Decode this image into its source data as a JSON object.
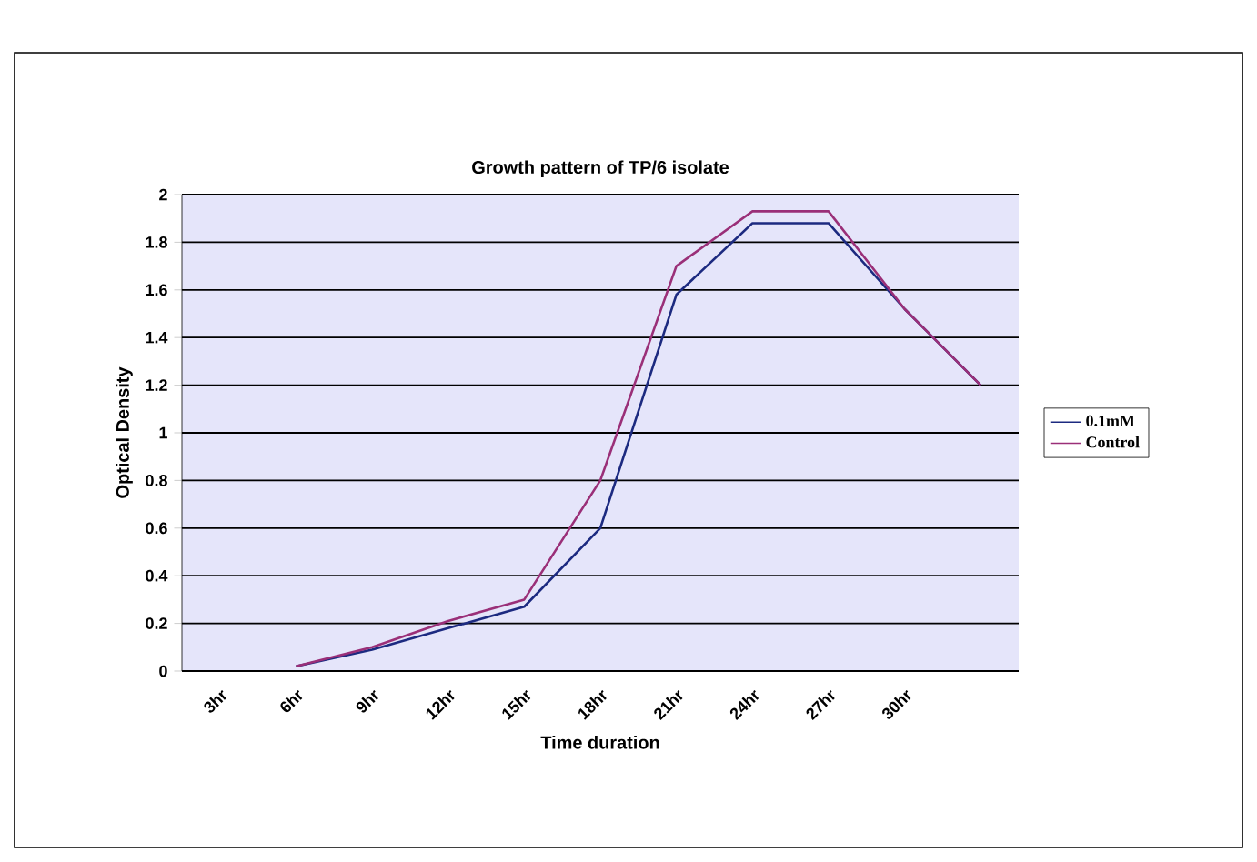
{
  "chart_data": {
    "type": "line",
    "title": "Growth pattern of TP/6 isolate",
    "xlabel": "Time duration",
    "ylabel": "Optical Density",
    "categories": [
      "3hr",
      "6hr",
      "9hr",
      "12hr",
      "15hr",
      "18hr",
      "21hr",
      "24hr",
      "27hr",
      "30hr",
      null
    ],
    "series": [
      {
        "name": "0.1mM",
        "color": "#1c2a80",
        "values": [
          null,
          0.02,
          0.09,
          0.18,
          0.27,
          0.6,
          1.58,
          1.88,
          1.88,
          1.52,
          1.2
        ]
      },
      {
        "name": "Control",
        "color": "#9a2f78",
        "values": [
          null,
          0.02,
          0.1,
          0.21,
          0.3,
          0.8,
          1.7,
          1.93,
          1.93,
          1.52,
          1.2
        ]
      }
    ],
    "ylim": [
      0,
      2
    ],
    "yticks": [
      0,
      0.2,
      0.4,
      0.6,
      0.8,
      1,
      1.2,
      1.4,
      1.6,
      1.8,
      2
    ],
    "grid": "y",
    "legend": "right",
    "marker": "none",
    "line_style": "solid"
  }
}
